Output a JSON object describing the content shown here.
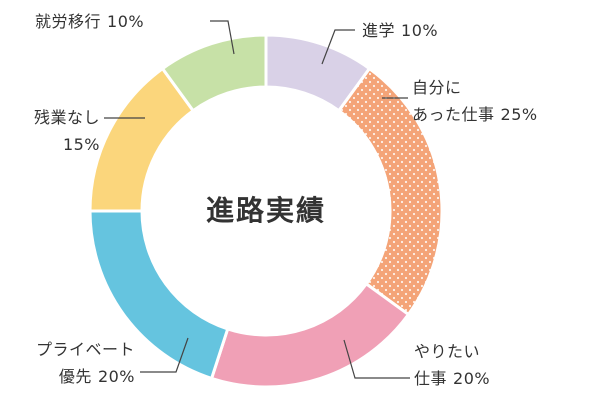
{
  "chart_data": {
    "type": "donut",
    "title": "進路実績",
    "categories": [
      "進学",
      "自分に\nあった仕事",
      "やりたい\n仕事",
      "プライベート\n優先",
      "残業なし\n",
      "就労移行"
    ],
    "values": [
      10,
      25,
      20,
      20,
      15,
      10
    ],
    "value_labels": [
      "10%",
      "25%",
      "20%",
      "20%",
      "15%",
      "10%"
    ],
    "colors": [
      "#d9d1e7",
      "#f4a478",
      "#f0a0b6",
      "#65c4df",
      "#fbd67c",
      "#c7e1a7"
    ],
    "patterns": [
      null,
      "dots",
      null,
      null,
      null,
      null
    ]
  }
}
